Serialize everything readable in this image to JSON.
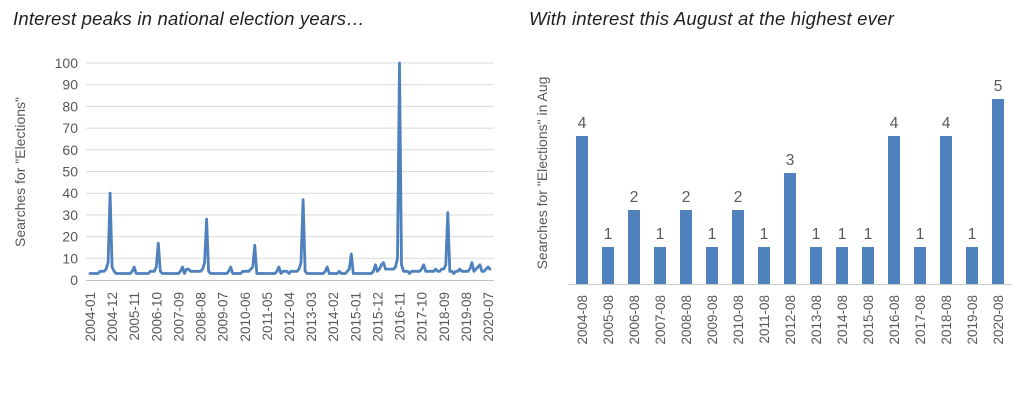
{
  "accent_color": "#4f81bd",
  "text_colors": {
    "title": "#1f1f1f",
    "ticks": "#595959"
  },
  "chart_data": [
    {
      "type": "line",
      "title": "Interest peaks in national election years…",
      "ylabel": "Searches for \"Elections\"",
      "x_unit": "month",
      "x_first": "2004-01",
      "x_last": "2020-08",
      "x_tick_step_months": 11,
      "x_tick_labels": [
        "2004-01",
        "2004-12",
        "2005-11",
        "2006-10",
        "2007-09",
        "2008-08",
        "2009-07",
        "2010-06",
        "2011-05",
        "2012-04",
        "2013-03",
        "2014-02",
        "2015-01",
        "2015-12",
        "2016-11",
        "2017-10",
        "2018-09",
        "2019-08",
        "2020-07"
      ],
      "ylim": [
        0,
        100
      ],
      "y_ticks": [
        0,
        10,
        20,
        30,
        40,
        50,
        60,
        70,
        80,
        90,
        100
      ],
      "grid": true,
      "legend": "none",
      "color": "#4f81bd",
      "values": [
        3,
        3,
        3,
        3,
        3,
        4,
        4,
        4,
        5,
        8,
        40,
        6,
        4,
        3,
        3,
        3,
        3,
        3,
        3,
        3,
        3,
        4,
        6,
        3,
        3,
        3,
        3,
        3,
        3,
        3,
        4,
        4,
        4,
        6,
        17,
        4,
        3,
        3,
        3,
        3,
        3,
        3,
        3,
        3,
        3,
        4,
        6,
        3,
        5,
        5,
        4,
        4,
        4,
        4,
        4,
        4,
        5,
        8,
        28,
        4,
        3,
        3,
        3,
        3,
        3,
        3,
        3,
        3,
        3,
        4,
        6,
        3,
        3,
        3,
        3,
        3,
        4,
        4,
        4,
        4,
        5,
        6,
        16,
        3,
        3,
        3,
        3,
        3,
        3,
        3,
        3,
        3,
        3,
        4,
        6,
        3,
        4,
        4,
        4,
        3,
        4,
        4,
        4,
        4,
        5,
        8,
        37,
        4,
        3,
        3,
        3,
        3,
        3,
        3,
        3,
        3,
        3,
        4,
        6,
        3,
        3,
        3,
        3,
        3,
        4,
        3,
        3,
        3,
        4,
        5,
        12,
        3,
        3,
        3,
        3,
        3,
        3,
        3,
        3,
        3,
        3,
        4,
        7,
        4,
        5,
        7,
        8,
        5,
        5,
        5,
        5,
        5,
        6,
        10,
        100,
        7,
        4,
        4,
        4,
        3,
        4,
        4,
        4,
        4,
        4,
        5,
        7,
        4,
        4,
        4,
        4,
        4,
        5,
        4,
        4,
        5,
        5,
        7,
        31,
        4,
        4,
        3,
        4,
        4,
        5,
        4,
        4,
        4,
        4,
        5,
        8,
        4,
        5,
        6,
        7,
        4,
        4,
        5,
        6,
        5
      ]
    },
    {
      "type": "bar",
      "title": "With interest this August at the highest ever",
      "ylabel": "Searches for \"Elections\" in Aug",
      "categories": [
        "2004-08",
        "2005-08",
        "2006-08",
        "2007-08",
        "2008-08",
        "2009-08",
        "2010-08",
        "2011-08",
        "2012-08",
        "2013-08",
        "2014-08",
        "2015-08",
        "2016-08",
        "2017-08",
        "2018-08",
        "2019-08",
        "2020-08"
      ],
      "values": [
        4,
        1,
        2,
        1,
        2,
        1,
        2,
        1,
        3,
        1,
        1,
        1,
        4,
        1,
        4,
        1,
        5
      ],
      "ylim": [
        0,
        6
      ],
      "grid": false,
      "legend": "none",
      "data_labels": true,
      "color": "#4f81bd"
    }
  ]
}
